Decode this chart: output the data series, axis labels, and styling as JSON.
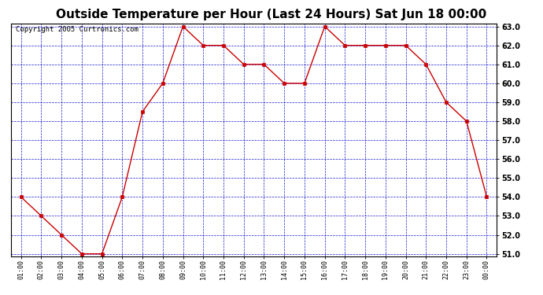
{
  "title": "Outside Temperature per Hour (Last 24 Hours) Sat Jun 18 00:00",
  "copyright": "Copyright 2005 Curtronics.com",
  "x_labels": [
    "01:00",
    "02:00",
    "03:00",
    "04:00",
    "05:00",
    "06:00",
    "07:00",
    "08:00",
    "09:00",
    "10:00",
    "11:00",
    "12:00",
    "13:00",
    "14:00",
    "15:00",
    "16:00",
    "17:00",
    "18:00",
    "19:00",
    "20:00",
    "21:00",
    "22:00",
    "23:00",
    "00:00"
  ],
  "y_values": [
    54.0,
    53.0,
    52.0,
    51.0,
    51.0,
    54.0,
    58.5,
    60.0,
    63.0,
    62.0,
    62.0,
    61.0,
    61.0,
    60.0,
    60.0,
    63.0,
    62.0,
    62.0,
    62.0,
    62.0,
    61.0,
    59.0,
    58.0,
    54.0
  ],
  "ylim": [
    51.0,
    63.0
  ],
  "y_ticks": [
    51.0,
    52.0,
    53.0,
    54.0,
    55.0,
    56.0,
    57.0,
    58.0,
    59.0,
    60.0,
    61.0,
    62.0,
    63.0
  ],
  "line_color": "#cc0000",
  "marker_color": "#cc0000",
  "bg_color": "#ffffff",
  "plot_bg_color": "#ffffff",
  "grid_color": "#0000cc",
  "title_fontsize": 11,
  "copyright_fontsize": 6.5
}
